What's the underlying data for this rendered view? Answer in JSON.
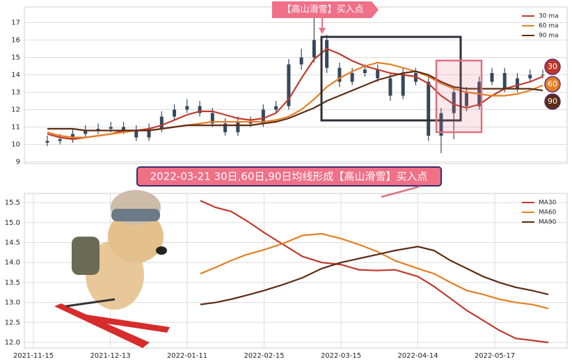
{
  "chart_data": [
    {
      "type": "candlestick",
      "annotation": "【高山滑雪】买入点",
      "end_labels": [
        "30",
        "60",
        "90"
      ],
      "candle_color": "#34495e",
      "open": [
        10.1,
        10.2,
        10.3,
        10.6,
        10.8,
        10.9,
        11.0,
        10.8,
        10.4,
        10.9,
        11.6,
        12.0,
        12.2,
        11.8,
        11.2,
        10.7,
        11.3,
        11.2,
        12.0,
        12.2,
        14.6,
        15.0,
        16.0,
        14.4,
        13.6,
        14.1,
        14.3,
        13.8,
        12.8,
        14.1,
        13.6,
        10.5,
        11.8,
        13.0,
        12.2,
        13.6,
        14.1,
        13.2,
        13.8,
        14.0
      ],
      "high": [
        10.5,
        10.6,
        10.9,
        11.1,
        11.2,
        11.3,
        11.3,
        11.1,
        11.2,
        11.9,
        12.3,
        12.6,
        12.5,
        12.1,
        11.5,
        11.6,
        11.6,
        12.3,
        12.5,
        14.9,
        15.5,
        17.5,
        16.3,
        14.7,
        14.4,
        14.6,
        14.6,
        14.1,
        14.4,
        14.4,
        13.9,
        12.1,
        13.3,
        13.3,
        13.9,
        14.4,
        14.4,
        14.1,
        14.3,
        14.3
      ],
      "low": [
        9.9,
        10.0,
        10.1,
        10.4,
        10.6,
        10.7,
        10.6,
        10.2,
        10.2,
        10.7,
        11.4,
        11.8,
        11.6,
        11.0,
        10.5,
        10.5,
        11.0,
        11.0,
        11.8,
        12.0,
        14.3,
        14.7,
        14.1,
        13.3,
        13.4,
        13.9,
        13.6,
        12.5,
        12.6,
        13.4,
        10.2,
        9.5,
        10.3,
        11.9,
        12.0,
        13.4,
        13.0,
        13.0,
        13.6,
        13.8
      ],
      "close": [
        10.2,
        10.3,
        10.6,
        10.8,
        10.9,
        11.0,
        10.8,
        10.4,
        10.9,
        11.6,
        12.0,
        12.2,
        11.8,
        11.2,
        10.7,
        11.3,
        11.2,
        12.0,
        12.2,
        14.6,
        15.0,
        16.0,
        14.4,
        13.6,
        14.1,
        14.3,
        13.8,
        12.8,
        14.1,
        13.6,
        10.5,
        11.8,
        13.0,
        12.2,
        13.6,
        14.1,
        13.2,
        13.8,
        14.0,
        14.0
      ],
      "series": [
        {
          "name": "30 ma",
          "color": "#c0392b",
          "values": [
            10.6,
            10.4,
            10.3,
            10.4,
            10.5,
            10.6,
            10.8,
            10.8,
            10.9,
            11.1,
            11.4,
            11.7,
            11.9,
            11.9,
            11.7,
            11.5,
            11.4,
            11.5,
            11.8,
            12.6,
            13.8,
            14.9,
            15.5,
            15.2,
            14.8,
            14.5,
            14.3,
            14.1,
            14.0,
            13.9,
            13.5,
            12.8,
            12.3,
            12.1,
            12.3,
            12.8,
            13.2,
            13.4,
            13.6,
            13.9
          ]
        },
        {
          "name": "60 ma",
          "color": "#e67e22",
          "values": [
            10.7,
            10.5,
            10.4,
            10.4,
            10.5,
            10.6,
            10.7,
            10.8,
            10.8,
            10.9,
            11.0,
            11.1,
            11.2,
            11.3,
            11.3,
            11.3,
            11.3,
            11.3,
            11.4,
            11.6,
            12.0,
            12.6,
            13.3,
            13.8,
            14.2,
            14.5,
            14.7,
            14.6,
            14.4,
            14.2,
            13.9,
            13.5,
            13.2,
            13.0,
            12.9,
            12.8,
            12.8,
            12.9,
            13.1,
            13.4
          ]
        },
        {
          "name": "90 ma",
          "color": "#5b2c14",
          "values": [
            10.9,
            10.9,
            10.9,
            10.8,
            10.8,
            10.8,
            10.8,
            10.8,
            10.8,
            10.9,
            11.0,
            11.1,
            11.1,
            11.1,
            11.1,
            11.1,
            11.1,
            11.2,
            11.3,
            11.5,
            11.8,
            12.1,
            12.5,
            12.8,
            13.1,
            13.4,
            13.7,
            13.9,
            14.1,
            14.2,
            14.0,
            13.6,
            13.3,
            13.2,
            13.2,
            13.2,
            13.2,
            13.2,
            13.2,
            13.1
          ]
        }
      ],
      "ylim": [
        8.9,
        17.9
      ],
      "yticks": [
        9,
        10,
        11,
        12,
        13,
        14,
        15,
        16,
        17
      ],
      "grid": true,
      "legend": "upper right"
    },
    {
      "type": "line",
      "annotation": "2022-03-21 30日,60日,90日均线形成【高山滑雪】买入点",
      "x": [
        "2022-01-17",
        "2022-01-24",
        "2022-01-31",
        "2022-02-07",
        "2022-02-15",
        "2022-02-22",
        "2022-03-01",
        "2022-03-08",
        "2022-03-15",
        "2022-03-22",
        "2022-03-29",
        "2022-04-05",
        "2022-04-14",
        "2022-04-21",
        "2022-04-28",
        "2022-05-05",
        "2022-05-12",
        "2022-05-19",
        "2022-05-26",
        "2022-06-02",
        "2022-06-09"
      ],
      "series": [
        {
          "name": "MA30",
          "color": "#c0392b",
          "values": [
            15.55,
            15.38,
            15.28,
            15.05,
            14.75,
            14.45,
            14.15,
            14.0,
            13.95,
            13.82,
            13.8,
            13.82,
            13.65,
            13.4,
            13.1,
            12.8,
            12.55,
            12.3,
            12.1,
            12.05,
            12.0
          ]
        },
        {
          "name": "MA60",
          "color": "#e67e22",
          "values": [
            13.72,
            13.88,
            14.05,
            14.2,
            14.32,
            14.48,
            14.68,
            14.72,
            14.6,
            14.45,
            14.28,
            14.05,
            13.85,
            13.72,
            13.5,
            13.3,
            13.2,
            13.08,
            13.0,
            12.95,
            12.85
          ]
        },
        {
          "name": "MA90",
          "color": "#5b2c14",
          "values": [
            12.95,
            13.0,
            13.08,
            13.18,
            13.3,
            13.45,
            13.62,
            13.85,
            14.0,
            14.1,
            14.2,
            14.3,
            14.4,
            14.3,
            14.05,
            13.85,
            13.65,
            13.5,
            13.38,
            13.3,
            13.2
          ]
        }
      ],
      "xlim": [
        "2021-11-12",
        "2022-06-17"
      ],
      "xticks": [
        "2021-11-15",
        "2021-12-13",
        "2022-01-11",
        "2022-02-15",
        "2022-03-15",
        "2022-04-14",
        "2022-05-17"
      ],
      "ylim": [
        11.86,
        15.73
      ],
      "yticks": [
        {
          "value": 12,
          "label": "12.0"
        },
        12.5,
        {
          "value": 13,
          "label": "13.0"
        },
        13.5,
        {
          "value": 14,
          "label": "14.0"
        },
        14.5,
        {
          "value": 15,
          "label": "15.0"
        },
        15.5
      ],
      "grid": true,
      "legend": "upper right"
    }
  ]
}
